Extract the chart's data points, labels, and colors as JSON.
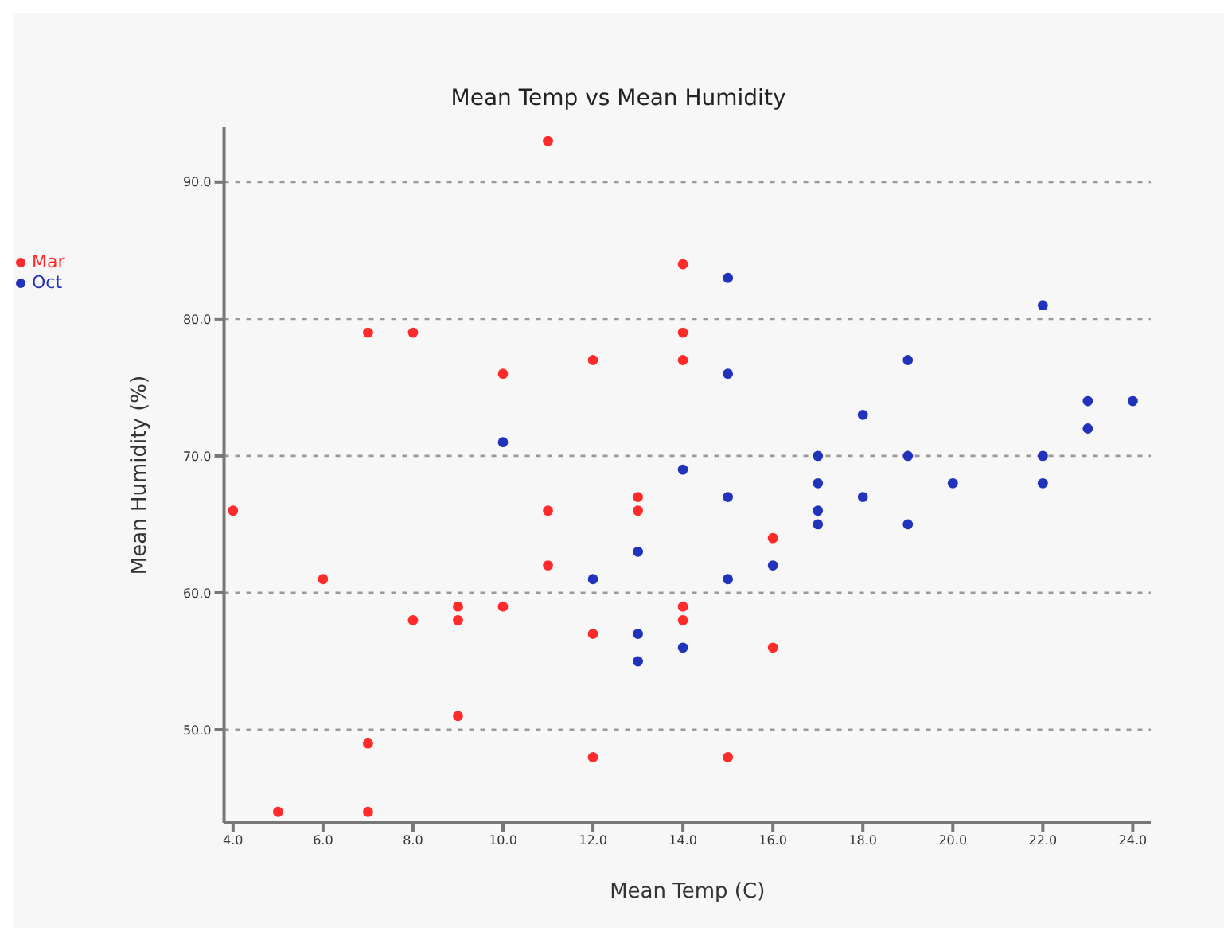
{
  "chart_data": {
    "type": "scatter",
    "title": "Mean Temp vs Mean Humidity",
    "xlabel": "Mean Temp (C)",
    "ylabel": "Mean Humidity (%)",
    "series": [
      {
        "name": "Mar",
        "color": "#ff2a2a",
        "x": [
          4,
          5,
          6,
          7,
          7,
          7,
          8,
          8,
          9,
          9,
          9,
          10,
          10,
          11,
          11,
          11,
          12,
          12,
          12,
          13,
          13,
          14,
          14,
          14,
          14,
          14,
          15,
          16,
          16
        ],
        "values": [
          66,
          44,
          61,
          79,
          49,
          44,
          79,
          58,
          59,
          58,
          51,
          76,
          59,
          93,
          66,
          62,
          77,
          57,
          48,
          67,
          66,
          84,
          79,
          77,
          59,
          58,
          48,
          64,
          56
        ]
      },
      {
        "name": "Oct",
        "color": "#2233bb",
        "x": [
          10,
          12,
          13,
          13,
          13,
          14,
          14,
          15,
          15,
          15,
          15,
          16,
          17,
          17,
          17,
          17,
          18,
          18,
          19,
          19,
          19,
          20,
          22,
          22,
          22,
          23,
          23,
          24
        ],
        "values": [
          71,
          61,
          63,
          57,
          55,
          69,
          56,
          83,
          76,
          67,
          61,
          62,
          70,
          68,
          66,
          65,
          73,
          67,
          77,
          70,
          65,
          68,
          81,
          70,
          68,
          74,
          72,
          74
        ]
      }
    ],
    "xlim": [
      3.8,
      24.4
    ],
    "ylim": [
      43.2,
      94
    ],
    "xticks": [
      {
        "value": 4,
        "label": "4.0"
      },
      {
        "value": 6,
        "label": "6.0"
      },
      {
        "value": 8,
        "label": "8.0"
      },
      {
        "value": 10,
        "label": "10.0"
      },
      {
        "value": 12,
        "label": "12.0"
      },
      {
        "value": 14,
        "label": "14.0"
      },
      {
        "value": 16,
        "label": "16.0"
      },
      {
        "value": 18,
        "label": "18.0"
      },
      {
        "value": 20,
        "label": "20.0"
      },
      {
        "value": 22,
        "label": "22.0"
      },
      {
        "value": 24,
        "label": "24.0"
      }
    ],
    "yticks": [
      {
        "value": 50,
        "label": "50.0"
      },
      {
        "value": 60,
        "label": "60.0"
      },
      {
        "value": 70,
        "label": "70.0"
      },
      {
        "value": 80,
        "label": "80.0"
      },
      {
        "value": 90,
        "label": "90.0"
      }
    ],
    "grid": "y",
    "legend": "top left",
    "marker": "circle"
  }
}
